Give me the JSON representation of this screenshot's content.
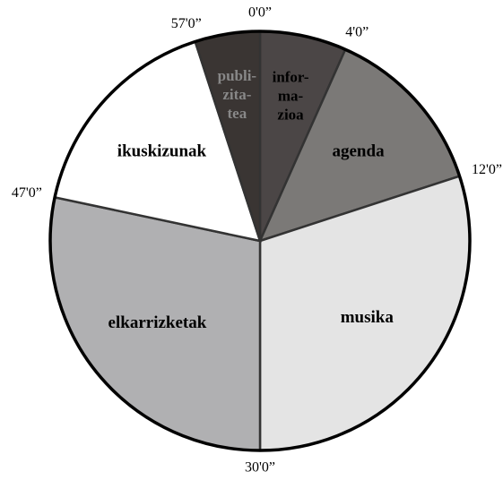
{
  "chart_data": {
    "type": "pie",
    "categories": [
      [
        "infor-",
        "ma-",
        "zioa"
      ],
      [
        "agenda"
      ],
      [
        "musika"
      ],
      [
        "elkarrizketak"
      ],
      [
        "ikuskizunak"
      ],
      [
        "publi-",
        "zita-",
        "tea"
      ]
    ],
    "values": [
      4,
      8,
      18,
      17,
      10,
      3
    ],
    "colors": [
      "#4b4646",
      "#7b7977",
      "#e4e4e4",
      "#b0b0b2",
      "#ffffff",
      "#3a3533"
    ],
    "boundary_labels": [
      "0'0”",
      "4'0”",
      "12'0”",
      "30'0”",
      "47'0”",
      "57'0”"
    ]
  }
}
